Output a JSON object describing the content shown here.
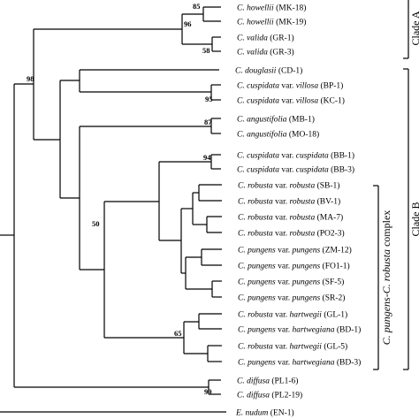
{
  "taxa": [
    {
      "genus": "C.",
      "epithet": "howellii",
      "code": "(MK-18)"
    },
    {
      "genus": "C.",
      "epithet": "howellii",
      "code": "(MK-19)"
    },
    {
      "genus": "C.",
      "epithet": "valida",
      "code": "(GR-1)"
    },
    {
      "genus": "C.",
      "epithet": "valida",
      "code": "(GR-3)"
    },
    {
      "genus": "C.",
      "epithet": "douglasii",
      "code": "(CD-1)"
    },
    {
      "genus": "C.",
      "epithet": "cuspidata",
      "rank": "var.",
      "variety": "villosa",
      "code": "(BP-1)"
    },
    {
      "genus": "C.",
      "epithet": "cuspidata",
      "rank": "var.",
      "variety": "villosa",
      "code": "(KC-1)"
    },
    {
      "genus": "C.",
      "epithet": "angustifolia",
      "code": "(MB-1)"
    },
    {
      "genus": "C.",
      "epithet": "angustifolia",
      "code": "(MO-18)"
    },
    {
      "genus": "C.",
      "epithet": "cuspidata",
      "rank": "var.",
      "variety": "cuspidata",
      "code": "(BB-1)"
    },
    {
      "genus": "C.",
      "epithet": "cuspidata",
      "rank": "var.",
      "variety": "cuspidata",
      "code": "(BB-3)"
    },
    {
      "genus": "C.",
      "epithet": "robusta",
      "rank": "var.",
      "variety": "robusta",
      "code": "(SB-1)"
    },
    {
      "genus": "C.",
      "epithet": "robusta",
      "rank": "var.",
      "variety": "robusta",
      "code": "(BV-1)"
    },
    {
      "genus": "C.",
      "epithet": "robusta",
      "rank": "var.",
      "variety": "robusta",
      "code": "(MA-7)"
    },
    {
      "genus": "C.",
      "epithet": "robusta",
      "rank": "var.",
      "variety": "robusta",
      "code": "(PO2-3)"
    },
    {
      "genus": "C.",
      "epithet": "pungens",
      "rank": "var.",
      "variety": "pungens",
      "code": "(ZM-12)"
    },
    {
      "genus": "C.",
      "epithet": "pungens",
      "rank": "var.",
      "variety": "pungens",
      "code": "(FO1-1)"
    },
    {
      "genus": "C.",
      "epithet": "pungens",
      "rank": "var.",
      "variety": "pungens",
      "code": "(SF-5)"
    },
    {
      "genus": "C.",
      "epithet": "pungens",
      "rank": "var.",
      "variety": "pungens",
      "code": "(SR-2)"
    },
    {
      "genus": "C.",
      "epithet": "robusta",
      "rank": "var.",
      "variety": "hartwegii",
      "code": "(GL-1)"
    },
    {
      "genus": "C.",
      "epithet": "pungens",
      "rank": "var.",
      "variety": "hartwegiana",
      "code": "(BD-1)"
    },
    {
      "genus": "C.",
      "epithet": "robusta",
      "rank": "var.",
      "variety": "hartwegii",
      "code": "(GL-5)"
    },
    {
      "genus": "C.",
      "epithet": "pungens",
      "rank": "var.",
      "variety": "hartwegiana",
      "code": "(BD-3)"
    },
    {
      "genus": "C.",
      "epithet": "diffusa",
      "code": "(PL1-6)"
    },
    {
      "genus": "C.",
      "epithet": "diffusa",
      "code": "(PL2-19)"
    },
    {
      "genus": "E.",
      "epithet": "nudum",
      "code": "(EN-1)"
    }
  ],
  "supports": [
    "85",
    "96",
    "58",
    "98",
    "95",
    "87",
    "94",
    "50",
    "65",
    "99"
  ],
  "complex_label": {
    "italic": "C. pungens-C. robusta",
    "plain": " complex"
  },
  "clade_labels": [
    "Clade A",
    "Clade B"
  ]
}
